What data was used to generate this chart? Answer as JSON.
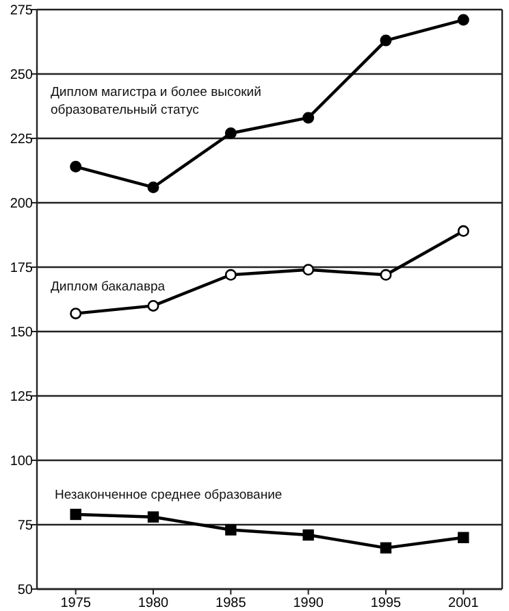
{
  "chart_data": {
    "type": "line",
    "categories": [
      "1975",
      "1980",
      "1985",
      "1990",
      "1995",
      "2001"
    ],
    "series": [
      {
        "name": "Диплом магистра и более высокий образовательный статус",
        "color": "#000000",
        "marker": "circle",
        "values": [
          214,
          206,
          227,
          233,
          263,
          271
        ]
      },
      {
        "name": "Диплом бакалавра",
        "color": "#000000",
        "marker": "circle",
        "values": [
          157,
          160,
          172,
          174,
          172,
          189
        ]
      },
      {
        "name": "Незаконченное среднее образование",
        "color": "#000000",
        "marker": "square",
        "values": [
          79,
          78,
          73,
          71,
          66,
          70
        ]
      }
    ],
    "ylim": [
      50,
      275
    ],
    "yticks": [
      50,
      75,
      100,
      125,
      150,
      175,
      200,
      225,
      250,
      275
    ],
    "grid": "y",
    "line_style": "solid"
  }
}
